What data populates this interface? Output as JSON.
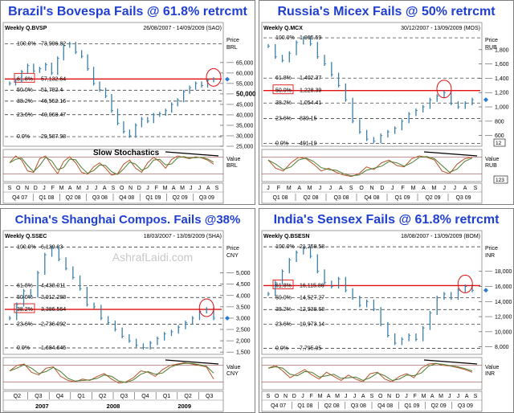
{
  "chart_data": [
    {
      "type": "line",
      "title": "Brazil's Bovespa Fails @ 61.8% retrcmt",
      "symbol": "Weekly Q.BVSP",
      "date_range": "26/08/2007 - 14/09/2009 (SAO)",
      "price_label": "Price",
      "currency": "BRL",
      "ylim": [
        25000,
        78000
      ],
      "y_ticks": [
        {
          "value": 65000,
          "label": "65,000"
        },
        {
          "value": 60000,
          "label": "60,000"
        },
        {
          "value": 55000,
          "label": "55,000"
        },
        {
          "value": 50000,
          "label": "50,000"
        },
        {
          "value": 45000,
          "label": "45,000"
        },
        {
          "value": 40000,
          "label": "40,000"
        },
        {
          "value": 35000,
          "label": "35,000"
        },
        {
          "value": 30000,
          "label": "30,000"
        },
        {
          "value": 25000,
          "label": "25,000"
        }
      ],
      "y_bold": "50,000",
      "fib_levels": [
        {
          "pct": "100.0%",
          "value": 73996.82,
          "label": "73,996.82"
        },
        {
          "pct": "61.8%",
          "value": 57132.64,
          "label": "57,132.64"
        },
        {
          "pct": "50.0%",
          "value": 51792.4,
          "label": "51,792.4"
        },
        {
          "pct": "38.2%",
          "value": 46552.16,
          "label": "46,552.16"
        },
        {
          "pct": "23.6%",
          "value": 40068.47,
          "label": "40,068.47"
        },
        {
          "pct": "0.0%",
          "value": 29587.98,
          "label": "29,587.98"
        }
      ],
      "highlight_level": "61.8%",
      "series": [
        {
          "values": [
            55000,
            56500,
            60500,
            63500,
            61000,
            62000,
            64000,
            60000,
            67000,
            73000,
            74000,
            70000,
            68000,
            62000,
            55000,
            52000,
            49000,
            42000,
            36000,
            32000,
            30000,
            35000,
            38000,
            37000,
            40000,
            40500,
            42000,
            45000,
            47000,
            51000,
            53000,
            55000,
            54000,
            56500,
            57000
          ]
        }
      ],
      "osc": {
        "title": "Slow Stochastics",
        "label": "Value",
        "currency": "BRL",
        "k": [
          60,
          85,
          70,
          30,
          25,
          75,
          85,
          50,
          20,
          65,
          82,
          60,
          25,
          18,
          45,
          60,
          40,
          15,
          20,
          55,
          70,
          40,
          25,
          60,
          80,
          65,
          40,
          72,
          85,
          80,
          75,
          82,
          78,
          70,
          55
        ],
        "divergence": true
      },
      "x_labels": [
        "S",
        "O",
        "N",
        "D",
        "J",
        "F",
        "M",
        "A",
        "M",
        "J",
        "J",
        "A",
        "S",
        "O",
        "N",
        "D",
        "J",
        "F",
        "M",
        "A",
        "M",
        "J",
        "J",
        "A",
        "S"
      ],
      "quarters": [
        "Q4 07",
        "Q1 08",
        "Q2 08",
        "Q3 08",
        "Q4 08",
        "Q1 09",
        "Q2 09",
        "Q3 09"
      ]
    },
    {
      "type": "line",
      "title": "Russia's Micex Fails @ 50% retrcmt",
      "symbol": "Weekly Q.MCX",
      "date_range": "30/12/2007 - 13/09/2009 (MOS)",
      "price_label": "Price",
      "currency": "RUB",
      "ylim": [
        450,
        2000
      ],
      "y_ticks": [
        {
          "value": 1800,
          "label": "1,800"
        },
        {
          "value": 1600,
          "label": "1,600"
        },
        {
          "value": 1400,
          "label": "1,400"
        },
        {
          "value": 1200,
          "label": "1,200"
        },
        {
          "value": 1000,
          "label": "1,000"
        },
        {
          "value": 800,
          "label": "800"
        },
        {
          "value": 600,
          "label": "600"
        }
      ],
      "y_bold": "",
      "last_price": "12",
      "fib_levels": [
        {
          "pct": "100.0%",
          "value": 1965.59,
          "label": "1,965.59"
        },
        {
          "pct": "61.8%",
          "value": 1402.37,
          "label": "1,402.37"
        },
        {
          "pct": "50.0%",
          "value": 1228.39,
          "label": "1,228.39"
        },
        {
          "pct": "38.2%",
          "value": 1054.41,
          "label": "1,054.41"
        },
        {
          "pct": "23.6%",
          "value": 839.15,
          "label": "839.15"
        },
        {
          "pct": "0.0%",
          "value": 491.19,
          "label": "491.19"
        }
      ],
      "highlight_level": "50.0%",
      "series": [
        {
          "values": [
            1850,
            1700,
            1650,
            1750,
            1900,
            1960,
            1880,
            1700,
            1600,
            1450,
            1300,
            1100,
            800,
            650,
            550,
            520,
            600,
            650,
            700,
            800,
            900,
            950,
            1000,
            1100,
            1150,
            1200,
            1050,
            1000,
            1050,
            1100
          ]
        }
      ],
      "osc": {
        "title": "",
        "label": "Value",
        "currency": "RUB",
        "last_value": "123",
        "k": [
          70,
          40,
          30,
          60,
          80,
          75,
          55,
          30,
          40,
          25,
          15,
          10,
          20,
          45,
          35,
          60,
          70,
          50,
          45,
          75,
          85,
          80,
          70,
          30,
          20,
          55,
          75,
          80
        ],
        "divergence": true
      },
      "x_labels": [
        "J",
        "F",
        "M",
        "A",
        "M",
        "J",
        "J",
        "A",
        "S",
        "O",
        "N",
        "D",
        "J",
        "F",
        "M",
        "A",
        "M",
        "J",
        "J",
        "A",
        "S"
      ],
      "quarters": [
        "Q1 08",
        "Q2 08",
        "Q3 08",
        "Q4 08",
        "Q1 09",
        "Q2 09",
        "Q3 09"
      ]
    },
    {
      "type": "line",
      "title": "China's Shanghai Compos. Fails @38%",
      "symbol": "Weekly Q.SSEC",
      "date_range": "18/03/2007 - 13/09/2009 (SHA)",
      "price_label": "Price",
      "currency": "CNY",
      "watermark": "AshrafLaidi.com",
      "ylim": [
        1400,
        6300
      ],
      "y_ticks": [
        {
          "value": 5000,
          "label": "5,000"
        },
        {
          "value": 4500,
          "label": "4,500"
        },
        {
          "value": 4000,
          "label": "4,000"
        },
        {
          "value": 3500,
          "label": "3,500"
        },
        {
          "value": 3000,
          "label": "3,000"
        },
        {
          "value": 2500,
          "label": "2,500"
        },
        {
          "value": 2000,
          "label": "2,000"
        },
        {
          "value": 1500,
          "label": "1,500"
        }
      ],
      "y_bold": "",
      "fib_levels": [
        {
          "pct": "100.0%",
          "value": 6139.93,
          "label": "6,139.93"
        },
        {
          "pct": "61.8%",
          "value": 4438.011,
          "label": "4,438.011"
        },
        {
          "pct": "50.0%",
          "value": 3912.288,
          "label": "3,912.288"
        },
        {
          "pct": "38.2%",
          "value": 3386.564,
          "label": "3,386.564"
        },
        {
          "pct": "23.6%",
          "value": 2736.092,
          "label": "2,736.092"
        },
        {
          "pct": "0.0%",
          "value": 1684.645,
          "label": "1,684.645"
        }
      ],
      "highlight_level": "38.2%",
      "series": [
        {
          "values": [
            3000,
            3600,
            4200,
            4000,
            5000,
            5800,
            6100,
            5600,
            5200,
            4800,
            4300,
            3600,
            3500,
            3000,
            2800,
            2500,
            2200,
            2000,
            1800,
            1700,
            1900,
            2100,
            2300,
            2400,
            2600,
            2800,
            3000,
            3300,
            3400,
            3000
          ]
        }
      ],
      "osc": {
        "title": "",
        "label": "Value",
        "currency": "CNY",
        "k": [
          60,
          80,
          85,
          55,
          45,
          70,
          75,
          40,
          25,
          20,
          30,
          25,
          40,
          50,
          30,
          15,
          20,
          35,
          60,
          55,
          40,
          65,
          80,
          85,
          90,
          85,
          80,
          75,
          30
        ],
        "divergence": true
      },
      "x_labels": [],
      "quarters": [
        "Q2",
        "Q3",
        "Q4",
        "Q1",
        "Q2",
        "Q3",
        "Q4",
        "Q1",
        "Q2",
        "Q3"
      ],
      "years": [
        "2007",
        "2008",
        "2009"
      ]
    },
    {
      "type": "line",
      "title": "India's Sensex Fails @ 61.8% retrcmt",
      "symbol": "Weekly Q.BSESN",
      "date_range": "18/08/2007 - 13/09/2009 (BOM)",
      "price_label": "Price",
      "currency": "INR",
      "ylim": [
        7000,
        21700
      ],
      "y_ticks": [
        {
          "value": 18000,
          "label": "18,000"
        },
        {
          "value": 16000,
          "label": "16,000"
        },
        {
          "value": 14000,
          "label": "14,000"
        },
        {
          "value": 12000,
          "label": "12,000"
        },
        {
          "value": 10000,
          "label": "10,000"
        },
        {
          "value": 8000,
          "label": "8,000"
        }
      ],
      "y_bold": "",
      "fib_levels": [
        {
          "pct": "100.0%",
          "value": 21258.58,
          "label": "21,258.58"
        },
        {
          "pct": "61.8%",
          "value": 16115.86,
          "label": "16,115.86"
        },
        {
          "pct": "50.0%",
          "value": 14527.27,
          "label": "14,527.27"
        },
        {
          "pct": "38.2%",
          "value": 12938.68,
          "label": "12,938.68"
        },
        {
          "pct": "23.6%",
          "value": 10973.14,
          "label": "10,973.14"
        },
        {
          "pct": "0.0%",
          "value": 7795.95,
          "label": "7,795.95"
        }
      ],
      "highlight_level": "61.8%",
      "series": [
        {
          "values": [
            15000,
            16500,
            18000,
            19500,
            20500,
            21000,
            20000,
            18000,
            16500,
            16000,
            17000,
            15500,
            14500,
            13500,
            14000,
            13000,
            11000,
            9500,
            8500,
            9000,
            9500,
            9000,
            10500,
            12500,
            14500,
            15000,
            14500,
            15500,
            16000,
            15500
          ]
        }
      ],
      "osc": {
        "title": "",
        "label": "Value",
        "currency": "INR",
        "k": [
          70,
          80,
          60,
          35,
          50,
          65,
          45,
          30,
          55,
          40,
          25,
          45,
          30,
          20,
          50,
          55,
          30,
          20,
          40,
          50,
          35,
          70,
          85,
          88,
          80,
          78,
          72,
          65,
          55
        ],
        "divergence": true
      },
      "x_labels": [
        "S",
        "O",
        "N",
        "D",
        "J",
        "F",
        "M",
        "A",
        "M",
        "J",
        "J",
        "A",
        "S",
        "O",
        "N",
        "D",
        "J",
        "F",
        "M",
        "A",
        "M",
        "J",
        "J",
        "A",
        "S"
      ],
      "quarters": [
        "Q4 07",
        "Q1 08",
        "Q2 08",
        "Q3 08",
        "Q4 08",
        "Q1 09",
        "Q2 09",
        "Q3 09"
      ]
    }
  ]
}
